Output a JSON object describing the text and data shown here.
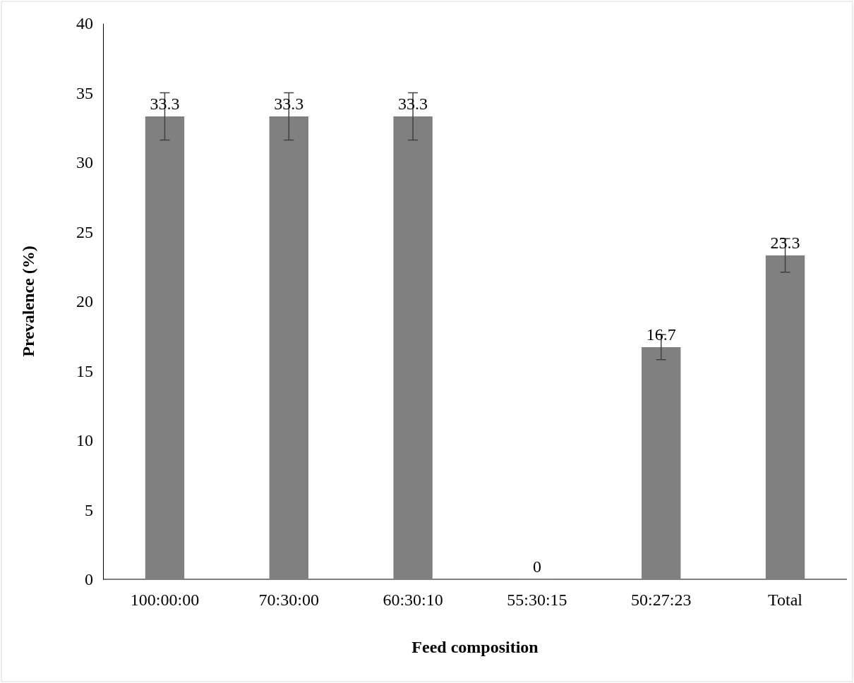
{
  "chart_data": {
    "type": "bar",
    "xlabel": "Feed composition",
    "ylabel": "Prevalence (%)",
    "categories": [
      "100:00:00",
      "70:30:00",
      "60:30:10",
      "55:30:15",
      "50:27:23",
      "Total"
    ],
    "values": [
      33.3,
      33.3,
      33.3,
      0,
      16.7,
      23.3
    ],
    "errors": [
      1.7,
      1.7,
      1.7,
      null,
      0.9,
      1.2
    ],
    "color": "#808080",
    "ylim": [
      0,
      40
    ],
    "yticks": [
      0,
      5,
      10,
      15,
      20,
      25,
      30,
      35,
      40
    ],
    "data_labels": true
  }
}
